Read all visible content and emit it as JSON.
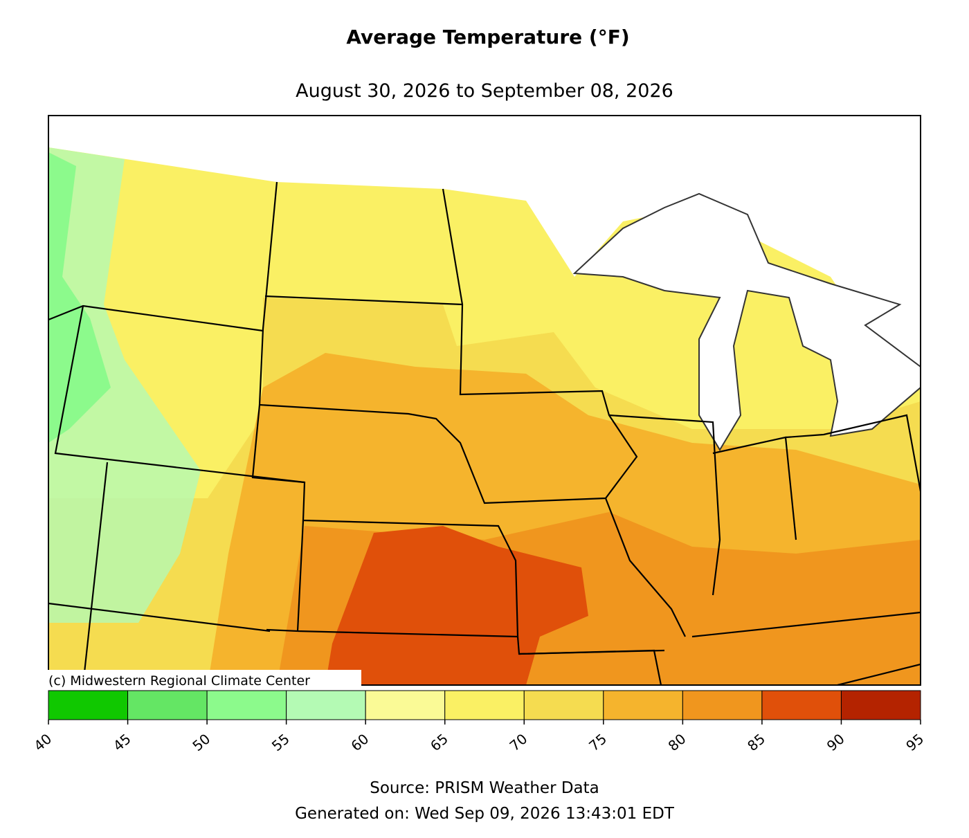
{
  "title": "Average Temperature (°F)",
  "subtitle": "August 30, 2026 to September 08, 2026",
  "credit": "(c) Midwestern Regional Climate Center",
  "colorbar": {
    "ticks": [
      40,
      45,
      50,
      55,
      60,
      65,
      70,
      75,
      80,
      85,
      90,
      95
    ],
    "colors": [
      "#10c800",
      "#64e664",
      "#8cfa8c",
      "#b4fab4",
      "#fafa96",
      "#faf064",
      "#f5dc50",
      "#f5b42d",
      "#f0961e",
      "#e0500a",
      "#b42300"
    ]
  },
  "source": "Source: PRISM Weather Data",
  "generated": "Generated on: Wed Sep 09, 2026 13:43:01 EDT"
}
